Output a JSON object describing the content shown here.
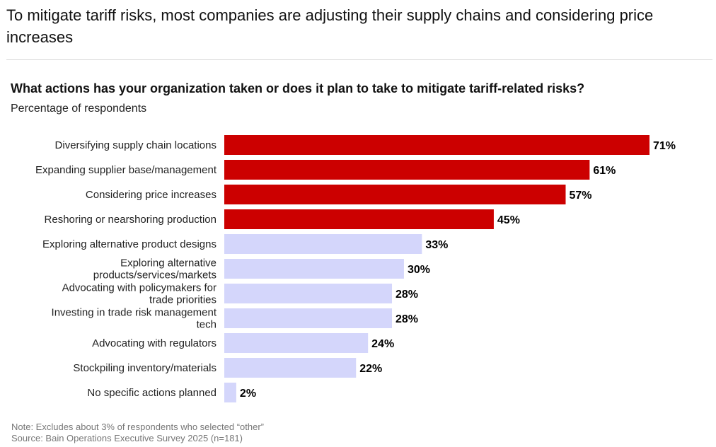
{
  "header": {
    "headline": "To mitigate tariff risks, most companies are adjusting their supply chains and considering price increases"
  },
  "chart_data": {
    "type": "bar",
    "orientation": "horizontal",
    "title": "What actions has your organization taken or does it plan to take to mitigate tariff-related risks?",
    "subtitle": "Percentage of respondents",
    "xlabel": "",
    "ylabel": "",
    "xlim": [
      0,
      71
    ],
    "grid": false,
    "value_suffix": "%",
    "categories": [
      "Diversifying supply chain locations",
      "Expanding supplier base/management",
      "Considering price increases",
      "Reshoring or nearshoring production",
      "Exploring alternative product designs",
      "Exploring alternative products/services/markets",
      "Advocating with policymakers for trade priorities",
      "Investing in trade risk management tech",
      "Advocating with regulators",
      "Stockpiling inventory/materials",
      "No specific actions planned"
    ],
    "category_lines": [
      [
        "Diversifying supply chain locations"
      ],
      [
        "Expanding supplier base/management"
      ],
      [
        "Considering price increases"
      ],
      [
        "Reshoring or nearshoring production"
      ],
      [
        "Exploring alternative product designs"
      ],
      [
        "Exploring alternative",
        "products/services/markets"
      ],
      [
        "Advocating with policymakers for",
        "trade priorities"
      ],
      [
        "Investing in trade risk management",
        "tech"
      ],
      [
        "Advocating with regulators"
      ],
      [
        "Stockpiling inventory/materials"
      ],
      [
        "No specific actions planned"
      ]
    ],
    "values": [
      71,
      61,
      57,
      45,
      33,
      30,
      28,
      28,
      24,
      22,
      2
    ],
    "highlight": [
      true,
      true,
      true,
      true,
      false,
      false,
      false,
      false,
      false,
      false,
      false
    ],
    "colors": {
      "highlight": "#cc0000",
      "normal": "#d4d6fb"
    }
  },
  "footer": {
    "note": "Note: Excludes about 3% of respondents who selected “other”",
    "source": "Source: Bain Operations Executive Survey 2025 (n=181)"
  }
}
